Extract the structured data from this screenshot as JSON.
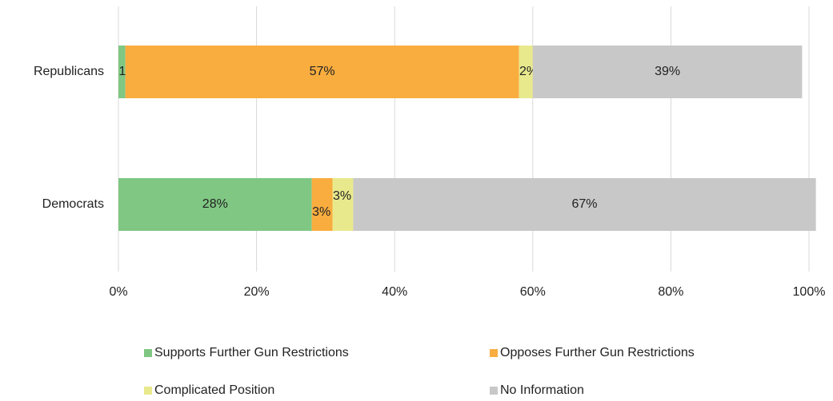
{
  "chart_data": {
    "type": "stacked_bar_horizontal",
    "categories": [
      "Republicans",
      "Democrats"
    ],
    "series": [
      {
        "name": "Supports Further Gun Restrictions",
        "color": "#7fc783",
        "values": [
          1,
          28
        ],
        "value_labels": [
          "1%",
          "28%"
        ]
      },
      {
        "name": "Opposes Further Gun Restrictions",
        "color": "#f9ad3f",
        "values": [
          57,
          3
        ],
        "value_labels": [
          "57%",
          "3%"
        ]
      },
      {
        "name": "Complicated Position",
        "color": "#e8e98c",
        "values": [
          2,
          3
        ],
        "value_labels": [
          "2%",
          "3%"
        ]
      },
      {
        "name": "No Information",
        "color": "#c8c8c8",
        "values": [
          39,
          67
        ],
        "value_labels": [
          "39%",
          "67%"
        ]
      }
    ],
    "xlim": [
      0,
      100
    ],
    "xticks": [
      {
        "value": 0,
        "label": "0%"
      },
      {
        "value": 20,
        "label": "20%"
      },
      {
        "value": 40,
        "label": "40%"
      },
      {
        "value": 60,
        "label": "60%"
      },
      {
        "value": 80,
        "label": "80%"
      },
      {
        "value": 100,
        "label": "100%"
      }
    ],
    "grid": true,
    "legend": "bottom"
  }
}
